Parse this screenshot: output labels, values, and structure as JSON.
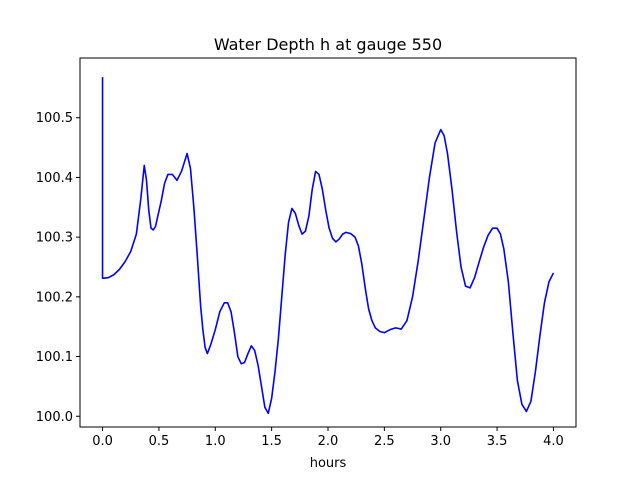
{
  "chart_data": {
    "type": "line",
    "title": "Water Depth h at gauge 550",
    "xlabel": "hours",
    "ylabel": "",
    "xlim": [
      -0.2,
      4.2
    ],
    "ylim": [
      99.982,
      100.6
    ],
    "xticks": [
      0.0,
      0.5,
      1.0,
      1.5,
      2.0,
      2.5,
      3.0,
      3.5,
      4.0
    ],
    "xtick_labels": [
      "0.0",
      "0.5",
      "1.0",
      "1.5",
      "2.0",
      "2.5",
      "3.0",
      "3.5",
      "4.0"
    ],
    "yticks": [
      100.0,
      100.1,
      100.2,
      100.3,
      100.4,
      100.5
    ],
    "ytick_labels": [
      "100.0",
      "100.1",
      "100.2",
      "100.3",
      "100.4",
      "100.5"
    ],
    "grid": false,
    "series": [
      {
        "color": "#0000ff",
        "x": [
          0.0,
          0.0,
          0.001,
          0.05,
          0.1,
          0.15,
          0.2,
          0.25,
          0.3,
          0.34,
          0.37,
          0.39,
          0.41,
          0.43,
          0.45,
          0.47,
          0.49,
          0.52,
          0.55,
          0.58,
          0.62,
          0.66,
          0.7,
          0.73,
          0.75,
          0.78,
          0.81,
          0.84,
          0.87,
          0.89,
          0.91,
          0.93,
          0.96,
          1.0,
          1.04,
          1.08,
          1.11,
          1.14,
          1.17,
          1.2,
          1.23,
          1.26,
          1.29,
          1.32,
          1.35,
          1.38,
          1.41,
          1.44,
          1.47,
          1.5,
          1.53,
          1.56,
          1.59,
          1.62,
          1.65,
          1.68,
          1.71,
          1.74,
          1.77,
          1.8,
          1.83,
          1.86,
          1.89,
          1.92,
          1.95,
          1.98,
          2.01,
          2.04,
          2.07,
          2.1,
          2.13,
          2.16,
          2.2,
          2.24,
          2.27,
          2.3,
          2.33,
          2.36,
          2.39,
          2.42,
          2.46,
          2.5,
          2.55,
          2.6,
          2.65,
          2.7,
          2.75,
          2.8,
          2.85,
          2.9,
          2.95,
          3.0,
          3.03,
          3.06,
          3.1,
          3.14,
          3.18,
          3.22,
          3.26,
          3.3,
          3.34,
          3.38,
          3.42,
          3.46,
          3.5,
          3.53,
          3.56,
          3.6,
          3.64,
          3.68,
          3.72,
          3.76,
          3.8,
          3.84,
          3.88,
          3.92,
          3.96,
          4.0
        ],
        "values": [
          100.568,
          100.232,
          100.231,
          100.232,
          100.237,
          100.246,
          100.259,
          100.276,
          100.305,
          100.365,
          100.42,
          100.395,
          100.345,
          100.315,
          100.312,
          100.318,
          100.335,
          100.36,
          100.39,
          100.405,
          100.405,
          100.395,
          100.41,
          100.428,
          100.44,
          100.415,
          100.35,
          100.27,
          100.185,
          100.145,
          100.115,
          100.105,
          100.12,
          100.145,
          100.175,
          100.19,
          100.19,
          100.175,
          100.14,
          100.1,
          100.088,
          100.09,
          100.105,
          100.118,
          100.11,
          100.085,
          100.05,
          100.015,
          100.005,
          100.03,
          100.075,
          100.13,
          100.2,
          100.27,
          100.325,
          100.348,
          100.34,
          100.32,
          100.305,
          100.31,
          100.335,
          100.38,
          100.41,
          100.405,
          100.38,
          100.345,
          100.315,
          100.298,
          100.292,
          100.297,
          100.305,
          100.308,
          100.306,
          100.3,
          100.285,
          100.255,
          100.215,
          100.18,
          100.16,
          100.148,
          100.142,
          100.14,
          100.145,
          100.148,
          100.146,
          100.16,
          100.2,
          100.26,
          100.33,
          100.4,
          100.458,
          100.48,
          100.47,
          100.44,
          100.38,
          100.31,
          100.25,
          100.218,
          100.215,
          100.232,
          100.258,
          100.283,
          100.303,
          100.315,
          100.315,
          100.305,
          100.28,
          100.225,
          100.14,
          100.06,
          100.02,
          100.008,
          100.025,
          100.075,
          100.135,
          100.19,
          100.225,
          100.24
        ]
      }
    ]
  }
}
